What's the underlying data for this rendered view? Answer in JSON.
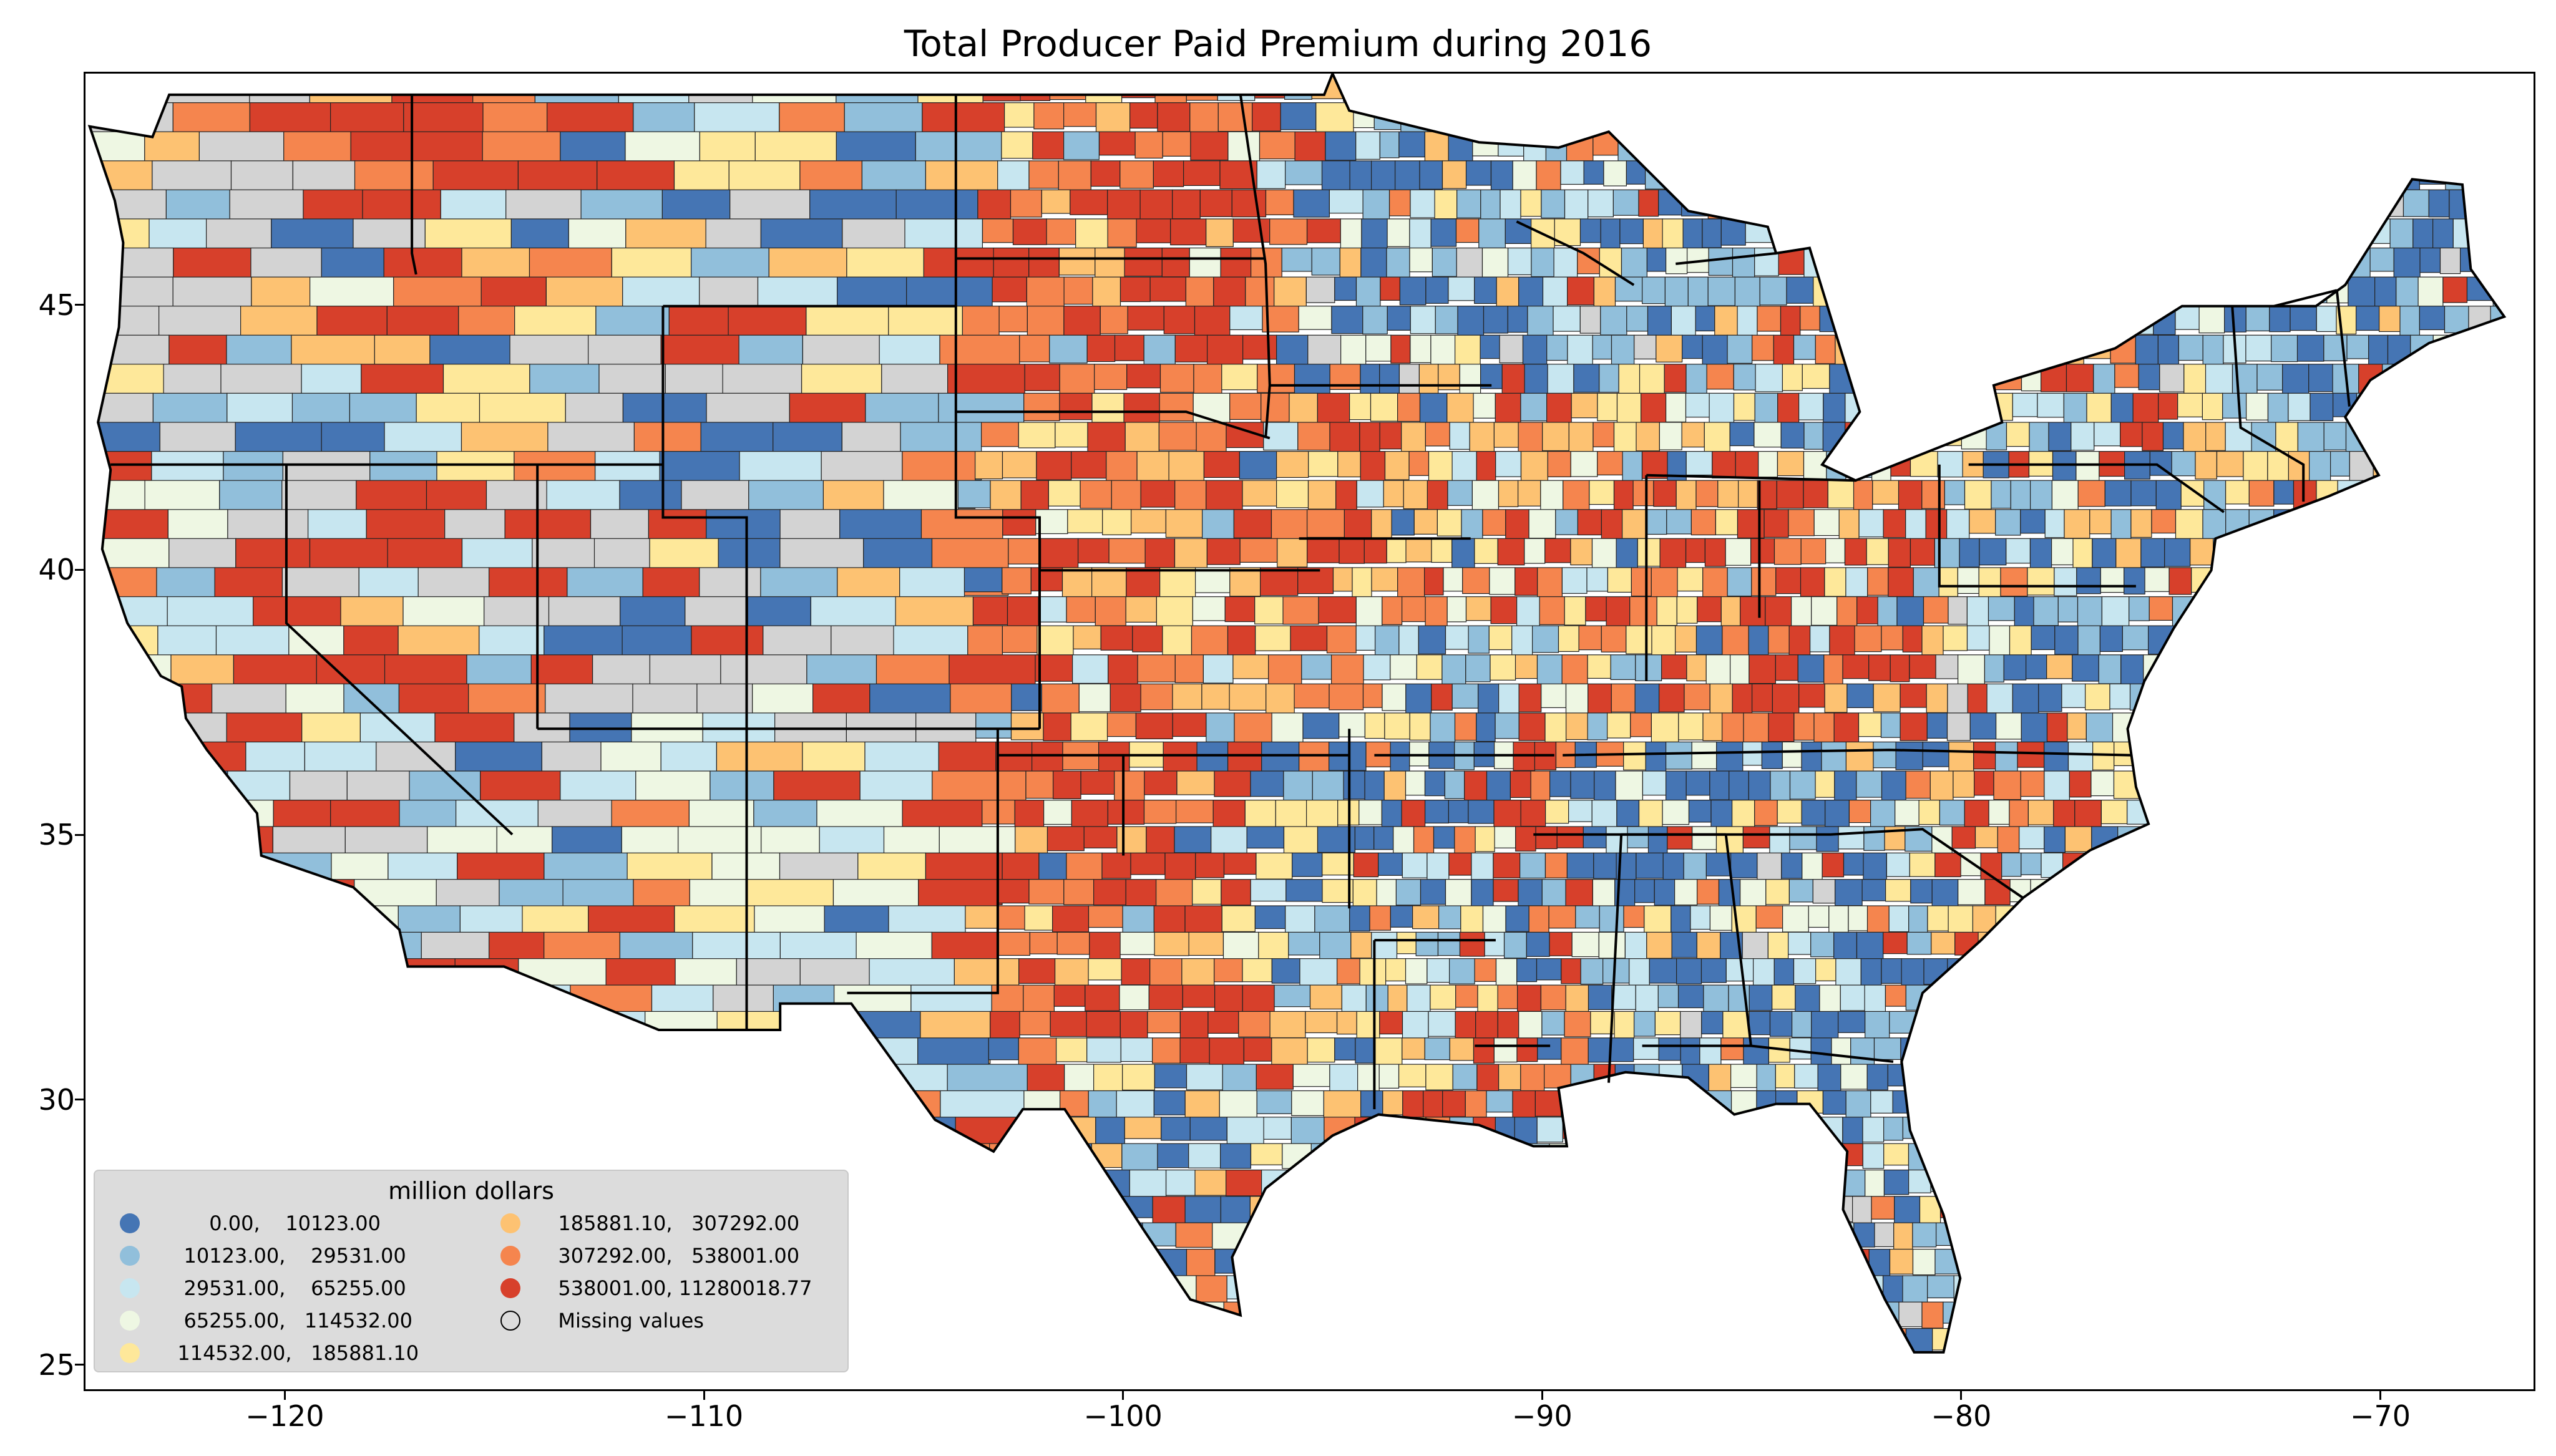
{
  "title": "Total Producer Paid Premium during 2016",
  "x_ticks": [
    "−120",
    "−110",
    "−100",
    "−90",
    "−80",
    "−70"
  ],
  "y_ticks": [
    "45",
    "40",
    "35",
    "30",
    "25"
  ],
  "legend": {
    "title": "million dollars",
    "items": [
      {
        "label": "       0.00,    10123.00",
        "color": "#4575b4"
      },
      {
        "label": "   10123.00,    29531.00",
        "color": "#91bfdb"
      },
      {
        "label": "   29531.00,    65255.00",
        "color": "#c7e6f0"
      },
      {
        "label": "   65255.00,   114532.00",
        "color": "#eef7e3"
      },
      {
        "label": "  114532.00,   185881.10",
        "color": "#fee89a"
      },
      {
        "label": "  185881.10,   307292.00",
        "color": "#fdc272"
      },
      {
        "label": "  307292.00,   538001.00",
        "color": "#f5854e"
      },
      {
        "label": "  538001.00, 11280018.77",
        "color": "#d7402b"
      },
      {
        "label": "  Missing values",
        "color": "#d3d3d3"
      }
    ]
  },
  "map": {
    "x_range": [
      -124.8,
      -66.3
    ],
    "y_range": [
      24.5,
      49.4
    ],
    "missing_color": "#d3d3d3"
  }
}
